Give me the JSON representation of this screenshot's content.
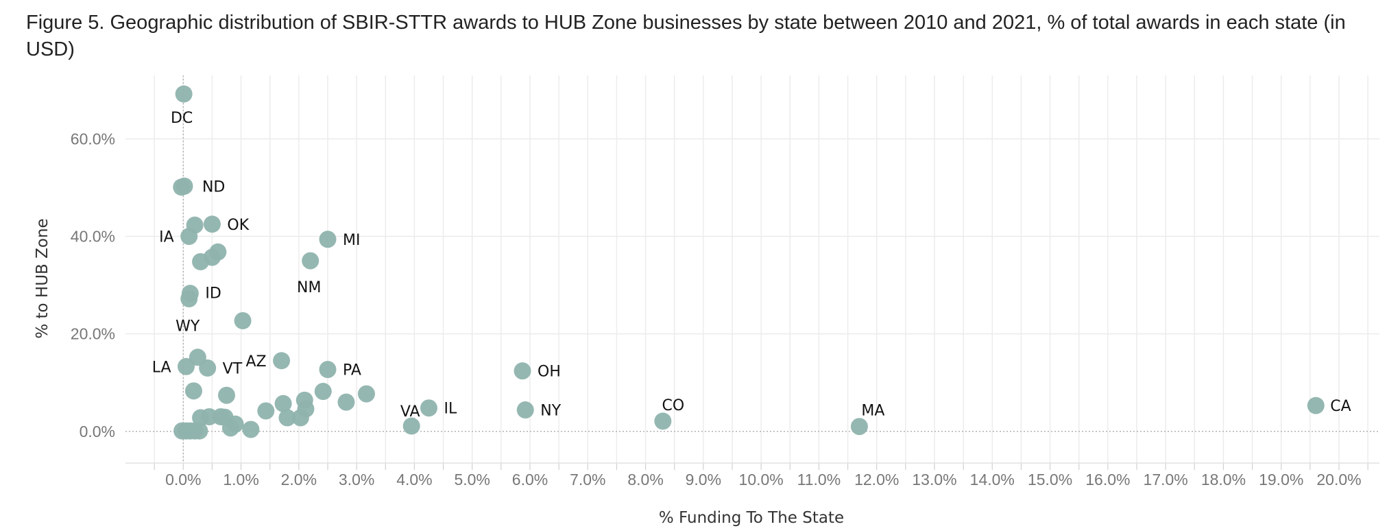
{
  "title": "Figure 5. Geographic distribution of SBIR-STTR awards to HUB Zone businesses by state between 2010 and 2021, % of total awards in each state (in USD)",
  "colors": {
    "point": "#8fb3ad",
    "grid": "#ececec",
    "zero_line": "#aaaaaa",
    "tick": "#777777"
  },
  "chart_data": {
    "type": "scatter",
    "title": "Figure 5. Geographic distribution of SBIR-STTR awards to HUB Zone businesses by state between 2010 and 2021, % of total awards in each state (in USD)",
    "xlabel": "% Funding To The State",
    "ylabel": "% to HUB Zone",
    "xlim": [
      -1,
      20.7
    ],
    "ylim": [
      -6.5,
      73
    ],
    "x_ticks": [
      0,
      1,
      2,
      3,
      4,
      5,
      6,
      7,
      8,
      9,
      10,
      11,
      12,
      13,
      14,
      15,
      16,
      17,
      18,
      19,
      20
    ],
    "x_tick_labels": [
      "0.0%",
      "1.0%",
      "2.0%",
      "3.0%",
      "4.0%",
      "5.0%",
      "6.0%",
      "7.0%",
      "8.0%",
      "9.0%",
      "10.0%",
      "11.0%",
      "12.0%",
      "13.0%",
      "14.0%",
      "15.0%",
      "16.0%",
      "17.0%",
      "18.0%",
      "19.0%",
      "20.0%"
    ],
    "y_ticks": [
      0,
      20,
      40,
      60
    ],
    "y_tick_labels": [
      "0.0%",
      "20.0%",
      "40.0%",
      "60.0%"
    ],
    "grid": true,
    "points": [
      {
        "label": "DC",
        "x": 0.01,
        "y": 69.2
      },
      {
        "label": "ND",
        "x": 0.02,
        "y": 50.3
      },
      {
        "label": "",
        "x": -0.03,
        "y": 50.1
      },
      {
        "label": "",
        "x": 0.2,
        "y": 42.3
      },
      {
        "label": "OK",
        "x": 0.5,
        "y": 42.5
      },
      {
        "label": "IA",
        "x": 0.1,
        "y": 40.0
      },
      {
        "label": "",
        "x": 0.6,
        "y": 36.8
      },
      {
        "label": "",
        "x": 0.5,
        "y": 35.7
      },
      {
        "label": "",
        "x": 0.3,
        "y": 34.8
      },
      {
        "label": "MI",
        "x": 2.5,
        "y": 39.4
      },
      {
        "label": "NM",
        "x": 2.2,
        "y": 35.0
      },
      {
        "label": "ID",
        "x": 0.12,
        "y": 28.3
      },
      {
        "label": "WY",
        "x": 0.1,
        "y": 27.2
      },
      {
        "label": "",
        "x": 1.03,
        "y": 22.7
      },
      {
        "label": "",
        "x": 0.25,
        "y": 15.2
      },
      {
        "label": "LA",
        "x": 0.05,
        "y": 13.3
      },
      {
        "label": "VT",
        "x": 0.42,
        "y": 13.0
      },
      {
        "label": "AZ",
        "x": 1.7,
        "y": 14.5
      },
      {
        "label": "PA",
        "x": 2.5,
        "y": 12.7
      },
      {
        "label": "OH",
        "x": 5.87,
        "y": 12.4
      },
      {
        "label": "",
        "x": 0.18,
        "y": 8.3
      },
      {
        "label": "",
        "x": 0.75,
        "y": 7.4
      },
      {
        "label": "",
        "x": 3.17,
        "y": 7.7
      },
      {
        "label": "",
        "x": 2.42,
        "y": 8.2
      },
      {
        "label": "",
        "x": 2.1,
        "y": 6.4
      },
      {
        "label": "",
        "x": 2.82,
        "y": 6.0
      },
      {
        "label": "",
        "x": 1.73,
        "y": 5.7
      },
      {
        "label": "",
        "x": 2.12,
        "y": 4.6
      },
      {
        "label": "",
        "x": 1.43,
        "y": 4.2
      },
      {
        "label": "VA",
        "x": 3.95,
        "y": 1.1
      },
      {
        "label": "IL",
        "x": 4.25,
        "y": 4.8
      },
      {
        "label": "NY",
        "x": 5.92,
        "y": 4.4
      },
      {
        "label": "CO",
        "x": 8.3,
        "y": 2.1
      },
      {
        "label": "MA",
        "x": 11.7,
        "y": 1.0
      },
      {
        "label": "CA",
        "x": 19.6,
        "y": 5.3
      },
      {
        "label": "",
        "x": 0.3,
        "y": 2.8
      },
      {
        "label": "",
        "x": 0.45,
        "y": 3.0
      },
      {
        "label": "",
        "x": 0.65,
        "y": 3.0
      },
      {
        "label": "",
        "x": 0.72,
        "y": 2.9
      },
      {
        "label": "",
        "x": 0.9,
        "y": 1.5
      },
      {
        "label": "",
        "x": 0.82,
        "y": 0.7
      },
      {
        "label": "",
        "x": 1.17,
        "y": 0.4
      },
      {
        "label": "",
        "x": 1.8,
        "y": 2.8
      },
      {
        "label": "",
        "x": 2.03,
        "y": 2.8
      },
      {
        "label": "",
        "x": -0.02,
        "y": 0.1
      },
      {
        "label": "",
        "x": 0.05,
        "y": 0.1
      },
      {
        "label": "",
        "x": 0.12,
        "y": 0.1
      },
      {
        "label": "",
        "x": 0.2,
        "y": 0.1
      },
      {
        "label": "",
        "x": 0.28,
        "y": 0.1
      }
    ]
  }
}
